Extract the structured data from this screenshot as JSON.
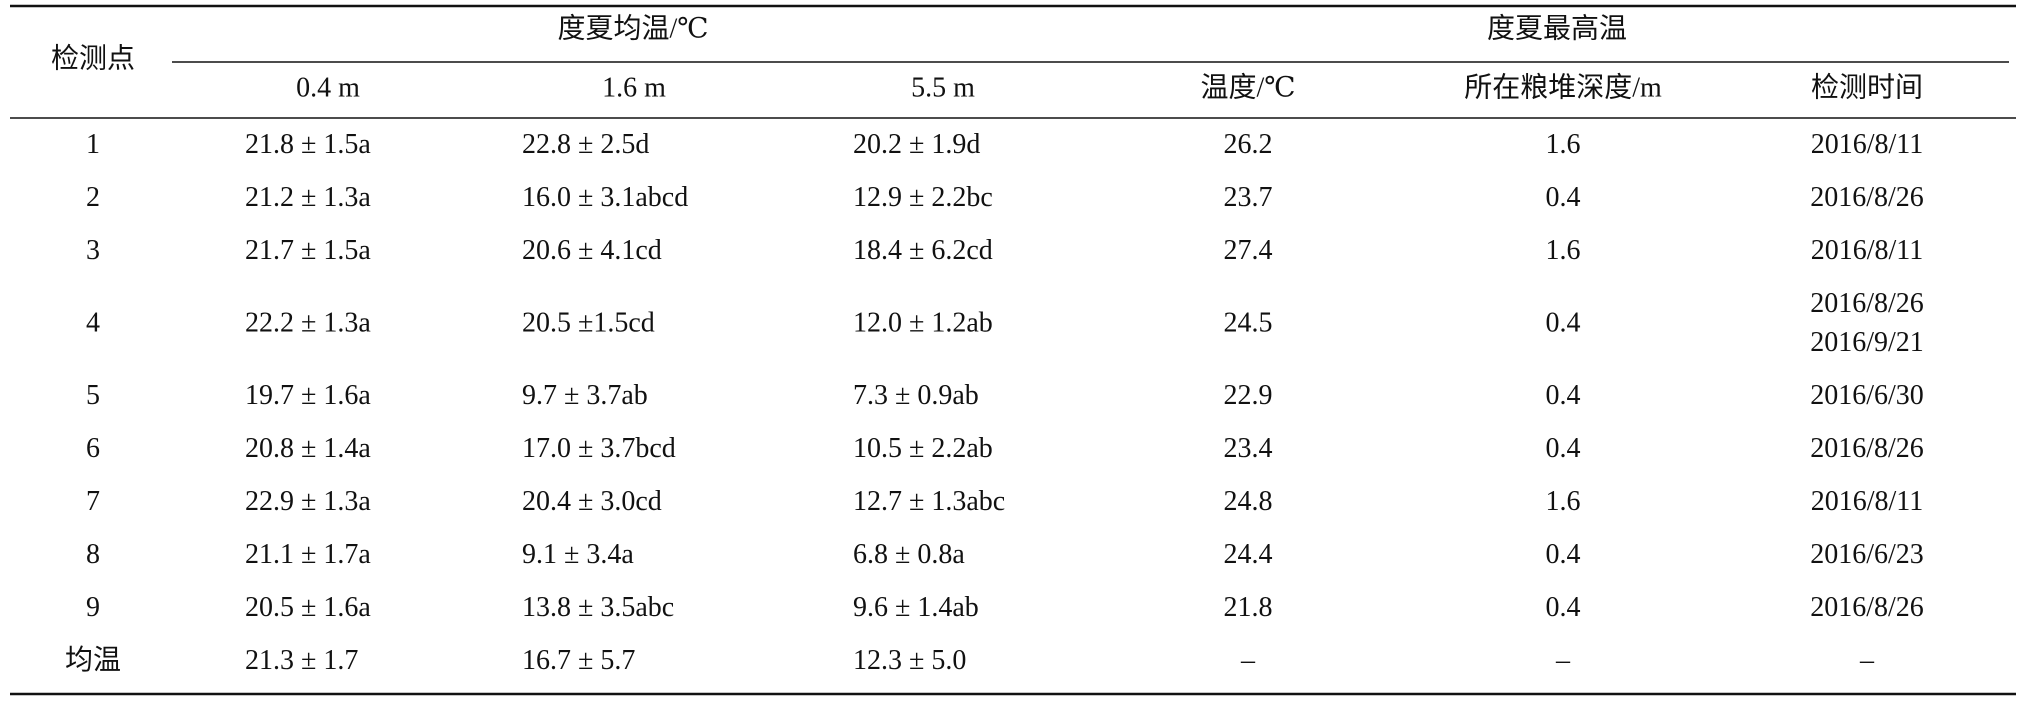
{
  "table": {
    "header": {
      "corner": "检测点",
      "group1": "度夏均温/℃",
      "group2": "度夏最高温",
      "columns": [
        "0.4 m",
        "1.6 m",
        "5.5 m",
        "温度/℃",
        "所在粮堆深度/m",
        "检测时间"
      ]
    },
    "rows": [
      [
        "1",
        "21.8 ± 1.5a",
        "22.8 ± 2.5d",
        "20.2 ± 1.9d",
        "26.2",
        "1.6",
        [
          "2016/8/11"
        ]
      ],
      [
        "2",
        "21.2 ± 1.3a",
        "16.0 ± 3.1abcd",
        "12.9 ± 2.2bc",
        "23.7",
        "0.4",
        [
          "2016/8/26"
        ]
      ],
      [
        "3",
        "21.7 ± 1.5a",
        "20.6 ± 4.1cd",
        "18.4 ± 6.2cd",
        "27.4",
        "1.6",
        [
          "2016/8/11"
        ]
      ],
      [
        "4",
        "22.2 ± 1.3a",
        "20.5 ±1.5cd",
        "12.0 ± 1.2ab",
        "24.5",
        "0.4",
        [
          "2016/8/26",
          "2016/9/21"
        ]
      ],
      [
        "5",
        "19.7 ± 1.6a",
        "9.7 ± 3.7ab",
        "7.3 ± 0.9ab",
        "22.9",
        "0.4",
        [
          "2016/6/30"
        ]
      ],
      [
        "6",
        "20.8 ± 1.4a",
        "17.0 ± 3.7bcd",
        "10.5 ± 2.2ab",
        "23.4",
        "0.4",
        [
          "2016/8/26"
        ]
      ],
      [
        "7",
        "22.9 ± 1.3a",
        "20.4 ± 3.0cd",
        "12.7 ± 1.3abc",
        "24.8",
        "1.6",
        [
          "2016/8/11"
        ]
      ],
      [
        "8",
        "21.1 ± 1.7a",
        "9.1 ± 3.4a",
        "6.8 ± 0.8a",
        "24.4",
        "0.4",
        [
          "2016/6/23"
        ]
      ],
      [
        "9",
        "20.5 ± 1.6a",
        "13.8 ± 3.5abc",
        "9.6 ± 1.4ab",
        "21.8",
        "0.4",
        [
          "2016/8/26"
        ]
      ],
      [
        "均温",
        "21.3 ± 1.7",
        "16.7 ± 5.7",
        "12.3 ± 5.0",
        "–",
        "–",
        [
          "–"
        ]
      ]
    ]
  }
}
